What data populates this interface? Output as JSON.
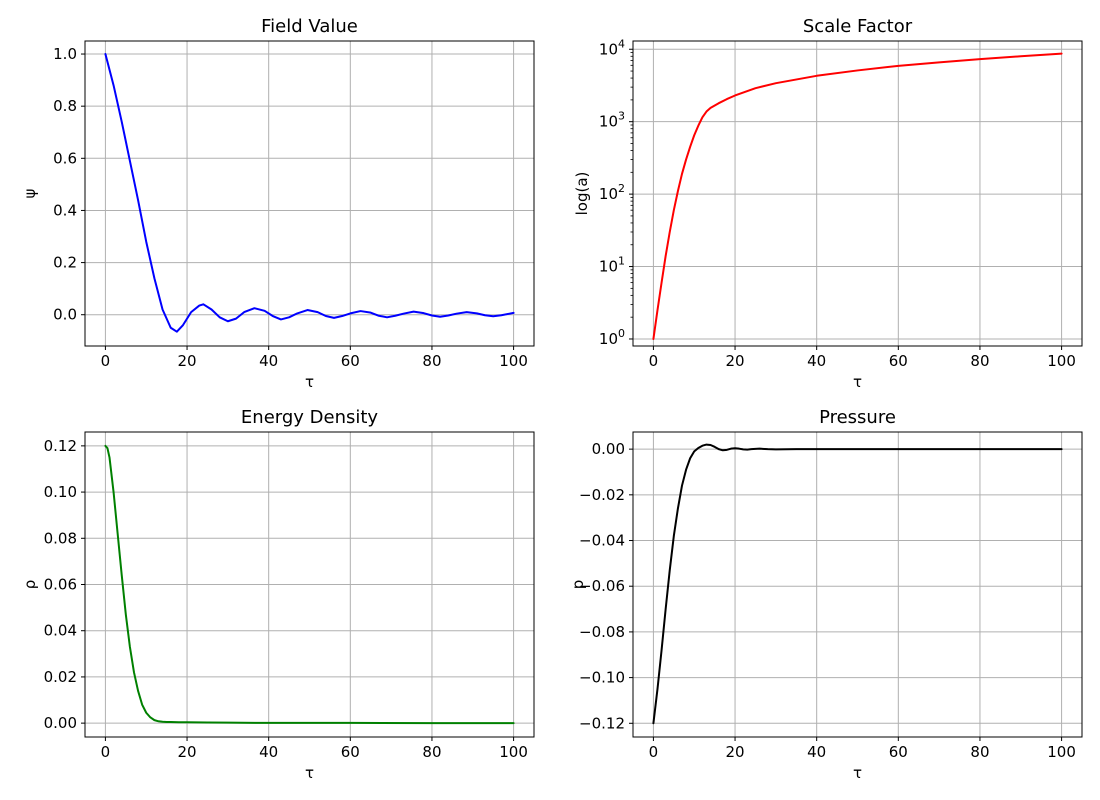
{
  "chart_data": [
    {
      "type": "line",
      "title": "Field Value",
      "xlabel": "τ",
      "ylabel": "ψ",
      "xlim": [
        -5,
        105
      ],
      "ylim": [
        -0.12,
        1.05
      ],
      "xscale": "linear",
      "yscale": "linear",
      "grid": true,
      "xticks": [
        0,
        20,
        40,
        60,
        80,
        100
      ],
      "xtick_labels": [
        "0",
        "20",
        "40",
        "60",
        "80",
        "100"
      ],
      "yticks": [
        0.0,
        0.2,
        0.4,
        0.6,
        0.8,
        1.0
      ],
      "ytick_labels": [
        "0.0",
        "0.2",
        "0.4",
        "0.6",
        "0.8",
        "1.0"
      ],
      "series": [
        {
          "color": "#0000ff",
          "x": [
            0,
            2,
            4,
            6,
            8,
            10,
            12,
            14,
            16,
            17.5,
            19,
            21,
            23,
            24,
            26,
            28,
            30,
            32,
            34,
            36.5,
            39,
            41,
            43,
            45,
            47,
            49.5,
            52,
            54,
            56,
            58,
            60,
            62.5,
            65,
            67,
            69,
            71,
            73,
            75.5,
            78,
            80,
            82,
            84,
            86,
            88.5,
            91,
            93,
            95,
            97,
            100
          ],
          "y": [
            1.0,
            0.88,
            0.74,
            0.59,
            0.44,
            0.28,
            0.14,
            0.02,
            -0.05,
            -0.065,
            -0.04,
            0.01,
            0.035,
            0.04,
            0.02,
            -0.01,
            -0.025,
            -0.015,
            0.01,
            0.025,
            0.015,
            -0.005,
            -0.018,
            -0.01,
            0.005,
            0.018,
            0.01,
            -0.005,
            -0.012,
            -0.005,
            0.005,
            0.014,
            0.008,
            -0.004,
            -0.01,
            -0.004,
            0.004,
            0.012,
            0.006,
            -0.003,
            -0.008,
            -0.003,
            0.004,
            0.01,
            0.005,
            -0.002,
            -0.006,
            -0.002,
            0.007
          ]
        }
      ]
    },
    {
      "type": "line",
      "title": "Scale Factor",
      "xlabel": "τ",
      "ylabel": "log(a)",
      "xlim": [
        -5,
        105
      ],
      "ylim": [
        0.8,
        13000
      ],
      "xscale": "linear",
      "yscale": "log",
      "grid": true,
      "xticks": [
        0,
        20,
        40,
        60,
        80,
        100
      ],
      "xtick_labels": [
        "0",
        "20",
        "40",
        "60",
        "80",
        "100"
      ],
      "yticks": [
        1,
        10,
        100,
        1000,
        10000
      ],
      "ytick_base": "10",
      "ytick_exponents": [
        "0",
        "1",
        "2",
        "3",
        "4"
      ],
      "series": [
        {
          "color": "#ff0000",
          "x": [
            0,
            1,
            2,
            3,
            4,
            5,
            6,
            7,
            8,
            9,
            10,
            11,
            12,
            13,
            14,
            16,
            18,
            20,
            25,
            30,
            40,
            50,
            60,
            70,
            80,
            90,
            100
          ],
          "y": [
            1,
            2.5,
            6,
            14,
            30,
            60,
            110,
            190,
            300,
            450,
            650,
            880,
            1150,
            1380,
            1550,
            1800,
            2050,
            2300,
            2900,
            3400,
            4300,
            5100,
            5900,
            6600,
            7300,
            8000,
            8700
          ]
        }
      ]
    },
    {
      "type": "line",
      "title": "Energy Density",
      "xlabel": "τ",
      "ylabel": "ρ",
      "xlim": [
        -5,
        105
      ],
      "ylim": [
        -0.006,
        0.126
      ],
      "xscale": "linear",
      "yscale": "linear",
      "grid": true,
      "xticks": [
        0,
        20,
        40,
        60,
        80,
        100
      ],
      "xtick_labels": [
        "0",
        "20",
        "40",
        "60",
        "80",
        "100"
      ],
      "yticks": [
        0.0,
        0.02,
        0.04,
        0.06,
        0.08,
        0.1,
        0.12
      ],
      "ytick_labels": [
        "0.00",
        "0.02",
        "0.04",
        "0.06",
        "0.08",
        "0.10",
        "0.12"
      ],
      "series": [
        {
          "color": "#008000",
          "x": [
            0,
            0.5,
            1,
            2,
            3,
            4,
            5,
            6,
            7,
            8,
            9,
            10,
            11,
            12,
            13,
            14,
            15,
            16,
            18,
            20,
            25,
            30,
            40,
            60,
            80,
            100
          ],
          "y": [
            0.12,
            0.119,
            0.115,
            0.1,
            0.082,
            0.064,
            0.047,
            0.033,
            0.022,
            0.014,
            0.008,
            0.0045,
            0.0025,
            0.0013,
            0.0008,
            0.0006,
            0.0005,
            0.0005,
            0.0004,
            0.0004,
            0.0003,
            0.0002,
            0.0001,
            0.0001,
            0.0,
            0.0
          ]
        }
      ]
    },
    {
      "type": "line",
      "title": "Pressure",
      "xlabel": "τ",
      "ylabel": "p",
      "xlim": [
        -5,
        105
      ],
      "ylim": [
        -0.126,
        0.0075
      ],
      "xscale": "linear",
      "yscale": "linear",
      "grid": true,
      "xticks": [
        0,
        20,
        40,
        60,
        80,
        100
      ],
      "xtick_labels": [
        "0",
        "20",
        "40",
        "60",
        "80",
        "100"
      ],
      "yticks": [
        -0.12,
        -0.1,
        -0.08,
        -0.06,
        -0.04,
        -0.02,
        0.0
      ],
      "ytick_labels": [
        "−0.12",
        "−0.10",
        "−0.08",
        "−0.06",
        "−0.04",
        "−0.02",
        "0.00"
      ],
      "series": [
        {
          "color": "#000000",
          "x": [
            0,
            1,
            2,
            3,
            4,
            5,
            6,
            7,
            8,
            9,
            10,
            11,
            12,
            13,
            14,
            15,
            16,
            17,
            18,
            19,
            20,
            21,
            22,
            23,
            24,
            26,
            28,
            30,
            35,
            40,
            50,
            60,
            80,
            100
          ],
          "y": [
            -0.12,
            -0.105,
            -0.088,
            -0.07,
            -0.053,
            -0.038,
            -0.026,
            -0.016,
            -0.009,
            -0.004,
            -0.001,
            0.0005,
            0.0015,
            0.002,
            0.0018,
            0.001,
            0.0,
            -0.0005,
            -0.0003,
            0.0002,
            0.0004,
            0.0002,
            -0.0001,
            -0.0002,
            0.0,
            0.0002,
            0.0,
            -0.0001,
            0.0,
            0.0,
            0.0,
            0.0,
            0.0,
            0.0
          ]
        }
      ]
    }
  ]
}
